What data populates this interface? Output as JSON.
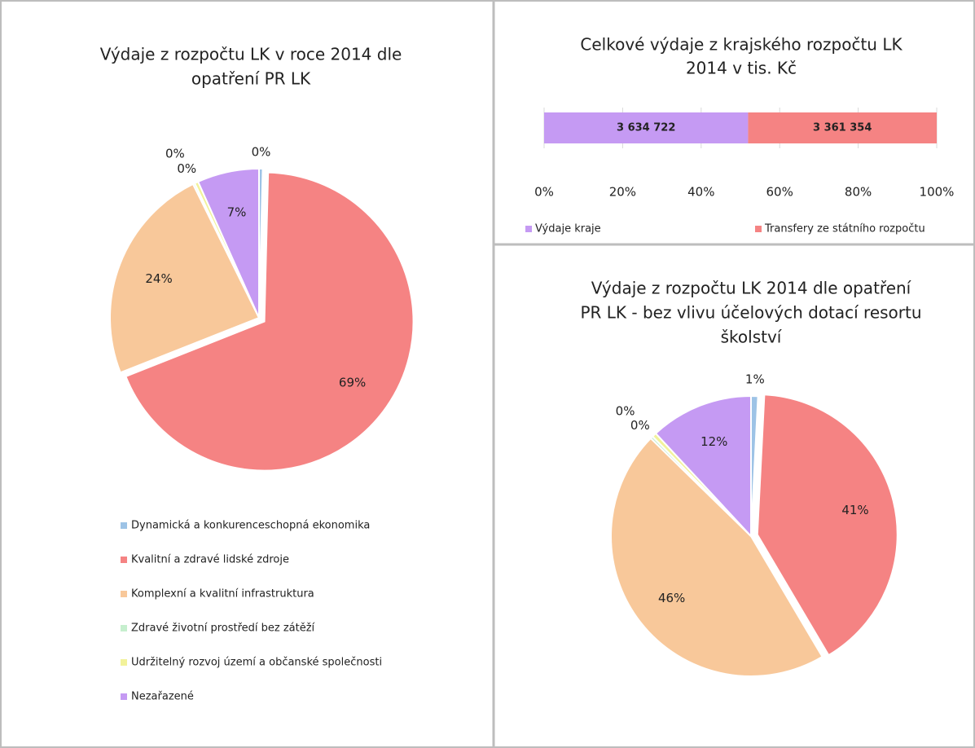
{
  "chart_data": [
    {
      "type": "pie",
      "title": [
        "Výdaje z rozpočtu LK v roce 2014 dle",
        "opatření PR LK"
      ],
      "categories": [
        "Dynamická a konkurenceschopná ekonomika",
        "Kvalitní a zdravé lidské zdroje",
        "Komplexní a kvalitní infrastruktura",
        "Zdravé životní prostředí bez zátěží",
        "Udržitelný rozvoj území a občanské společnosti",
        "Nezařazené"
      ],
      "values": [
        0.4,
        68.6,
        23.7,
        0.2,
        0.4,
        6.7
      ],
      "value_labels": [
        "0%",
        "69%",
        "24%",
        "0%",
        "0%",
        "7%"
      ],
      "colors": [
        "#9dc3e6",
        "#f58383",
        "#f8c89a",
        "#c6efce",
        "#f2f29a",
        "#c59af3"
      ],
      "exploded": 1,
      "legend": "bottom"
    },
    {
      "type": "bar",
      "orientation": "horizontal",
      "stacking": "percent",
      "title": [
        "Celkové výdaje z krajského rozpočtu LK",
        "2014 v tis. Kč"
      ],
      "series": [
        {
          "name": "Výdaje kraje",
          "color": "#c59af3",
          "values": [
            3634722
          ],
          "value_labels": [
            "3 634 722"
          ]
        },
        {
          "name": "Transfery ze státního rozpočtu",
          "color": "#f58383",
          "values": [
            3361354
          ],
          "value_labels": [
            "3 361 354"
          ]
        }
      ],
      "xlim": [
        0,
        100
      ],
      "xticks": [
        {
          "value": 0,
          "label": "0%"
        },
        {
          "value": 20,
          "label": "20%"
        },
        {
          "value": 40,
          "label": "40%"
        },
        {
          "value": 60,
          "label": "60%"
        },
        {
          "value": 80,
          "label": "80%"
        },
        {
          "value": 100,
          "label": "100%"
        }
      ],
      "legend": "bottom"
    },
    {
      "type": "pie",
      "title": [
        "Výdaje z rozpočtu LK 2014 dle opatření",
        "PR LK - bez vlivu účelových dotací resortu",
        "školství"
      ],
      "values": [
        0.8,
        40.7,
        45.8,
        0.3,
        0.5,
        11.9
      ],
      "value_labels": [
        "1%",
        "41%",
        "46%",
        "0%",
        "0%",
        "12%"
      ],
      "colors": [
        "#9dc3e6",
        "#f58383",
        "#f8c89a",
        "#c6efce",
        "#f2f29a",
        "#c59af3"
      ],
      "exploded": 1
    }
  ]
}
